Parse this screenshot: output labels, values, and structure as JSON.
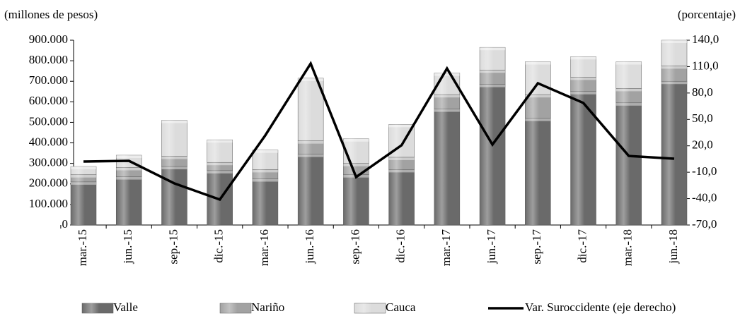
{
  "chart_data": {
    "type": "bar-line",
    "y_label": "(millones de pesos)",
    "y2_label": "(porcentaje)",
    "categories": [
      "mar.-15",
      "jun.-15",
      "sep.-15",
      "dic.-15",
      "mar.-16",
      "jun.-16",
      "sep.-16",
      "dic.-16",
      "mar.-17",
      "jun.-17",
      "sep.-17",
      "dic.-17",
      "mar.-18",
      "jun.-18"
    ],
    "ylim": [
      0,
      900000
    ],
    "yticks": [
      {
        "value": 0,
        "label": "0"
      },
      {
        "value": 100000,
        "label": "100.000"
      },
      {
        "value": 200000,
        "label": "200.000"
      },
      {
        "value": 300000,
        "label": "300.000"
      },
      {
        "value": 400000,
        "label": "400.000"
      },
      {
        "value": 500000,
        "label": "500.000"
      },
      {
        "value": 600000,
        "label": "600.000"
      },
      {
        "value": 700000,
        "label": "700.000"
      },
      {
        "value": 800000,
        "label": "800.000"
      },
      {
        "value": 900000,
        "label": "900.000"
      }
    ],
    "y2lim": [
      -70,
      140
    ],
    "y2ticks": [
      {
        "value": -70,
        "label": "-70,0"
      },
      {
        "value": -40,
        "label": "-40,0"
      },
      {
        "value": -10,
        "label": "-10,0"
      },
      {
        "value": 20,
        "label": "20,0"
      },
      {
        "value": 50,
        "label": "50,0"
      },
      {
        "value": 80,
        "label": "80,0"
      },
      {
        "value": 110,
        "label": "110,0"
      },
      {
        "value": 140,
        "label": "140,0"
      }
    ],
    "series": [
      {
        "name": "Valle",
        "type": "bar",
        "color": "#6a6a6a",
        "values": [
          210000,
          235000,
          285000,
          265000,
          225000,
          345000,
          245000,
          270000,
          565000,
          685000,
          520000,
          650000,
          595000,
          700000
        ]
      },
      {
        "name": "Nariño",
        "type": "bar",
        "color": "#a2a2a2",
        "values": [
          35000,
          45000,
          50000,
          40000,
          45000,
          65000,
          55000,
          60000,
          70000,
          70000,
          115000,
          70000,
          70000,
          75000
        ]
      },
      {
        "name": "Cauca",
        "type": "bar",
        "color": "#dcdcdc",
        "values": [
          40000,
          60000,
          175000,
          110000,
          95000,
          305000,
          120000,
          160000,
          105000,
          110000,
          160000,
          100000,
          130000,
          125000
        ]
      },
      {
        "name": "Var. Suroccidente (eje derecho)",
        "type": "line",
        "axis": "y2",
        "color": "#000000",
        "values": [
          2.1,
          2.9,
          -22.7,
          -41.1,
          31.8,
          113.5,
          -15.5,
          20.6,
          107.9,
          21.4,
          91.1,
          68.7,
          8.5,
          5.3
        ]
      }
    ]
  }
}
